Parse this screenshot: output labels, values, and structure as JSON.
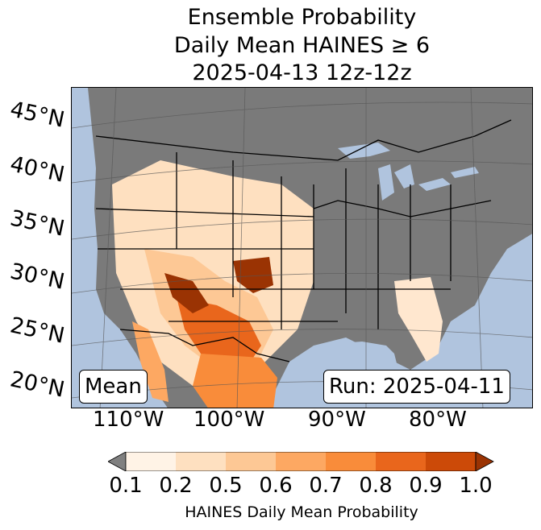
{
  "title": {
    "line1": "Ensemble Probability",
    "line2": "Daily Mean HAINES ≥ 6",
    "line3": "2025-04-13 12z-12z"
  },
  "map": {
    "ocean_color": "#b0c4de",
    "land_no_data_color": "#7a7a7a",
    "lat_labels": [
      "45°N",
      "40°N",
      "35°N",
      "30°N",
      "25°N",
      "20°N"
    ],
    "lon_labels": [
      "110°W",
      "100°W",
      "90°W",
      "80°W"
    ],
    "mean_label": "Mean",
    "run_label": "Run: 2025-04-11"
  },
  "colorbar": {
    "label": "HAINES Daily Mean Probability",
    "ticks": [
      "0.1",
      "0.2",
      "0.5",
      "0.6",
      "0.7",
      "0.8",
      "0.9",
      "1.0"
    ],
    "colors": [
      "#808080",
      "#fff3e6",
      "#fee0c0",
      "#fdc895",
      "#fda862",
      "#f98c3a",
      "#e9661c",
      "#cc4a08",
      "#9a3303"
    ]
  }
}
